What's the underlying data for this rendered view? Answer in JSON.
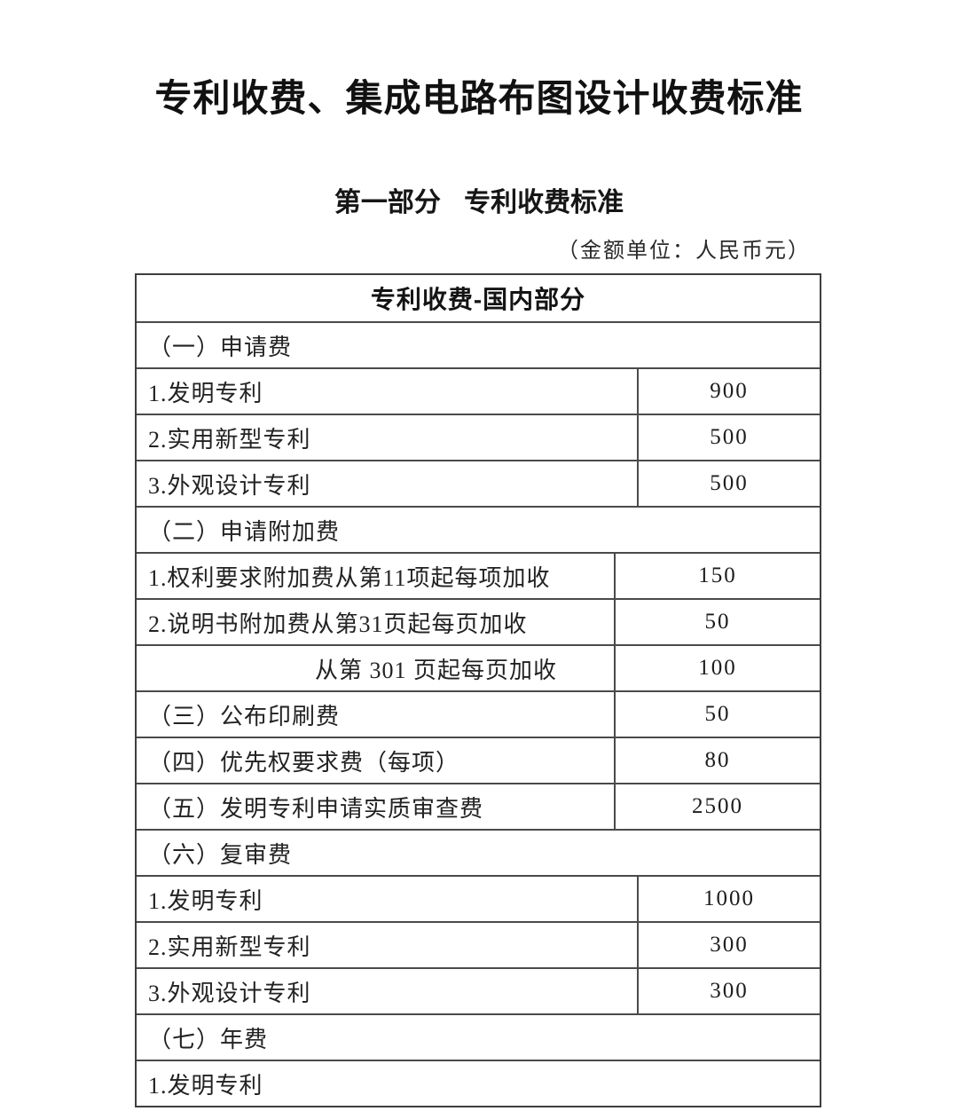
{
  "page": {
    "title": "专利收费、集成电路布图设计收费标准",
    "subtitle": "第一部分 专利收费标准",
    "unit_note": "（金额单位：人民币元）"
  },
  "table": {
    "header": "专利收费-国内部分",
    "rows": [
      {
        "label": "（一）申请费",
        "value": ""
      },
      {
        "label": "1.发明专利",
        "value": "900"
      },
      {
        "label": "2.实用新型专利",
        "value": "500"
      },
      {
        "label": "3.外观设计专利",
        "value": "500"
      },
      {
        "label": "（二）申请附加费",
        "value": ""
      },
      {
        "label": "1.权利要求附加费从第11项起每项加收",
        "value": "150"
      },
      {
        "label": "2.说明书附加费从第31页起每页加收",
        "value": "50"
      },
      {
        "label": "从第 301 页起每页加收",
        "value": "100"
      },
      {
        "label": "（三）公布印刷费",
        "value": "50"
      },
      {
        "label": "（四）优先权要求费（每项）",
        "value": "80"
      },
      {
        "label": "（五）发明专利申请实质审查费",
        "value": "2500"
      },
      {
        "label": "（六）复审费",
        "value": ""
      },
      {
        "label": "1.发明专利",
        "value": "1000"
      },
      {
        "label": "2.实用新型专利",
        "value": "300"
      },
      {
        "label": "3.外观设计专利",
        "value": "300"
      },
      {
        "label": "（七）年费",
        "value": ""
      },
      {
        "label": "1.发明专利",
        "value": ""
      }
    ]
  }
}
